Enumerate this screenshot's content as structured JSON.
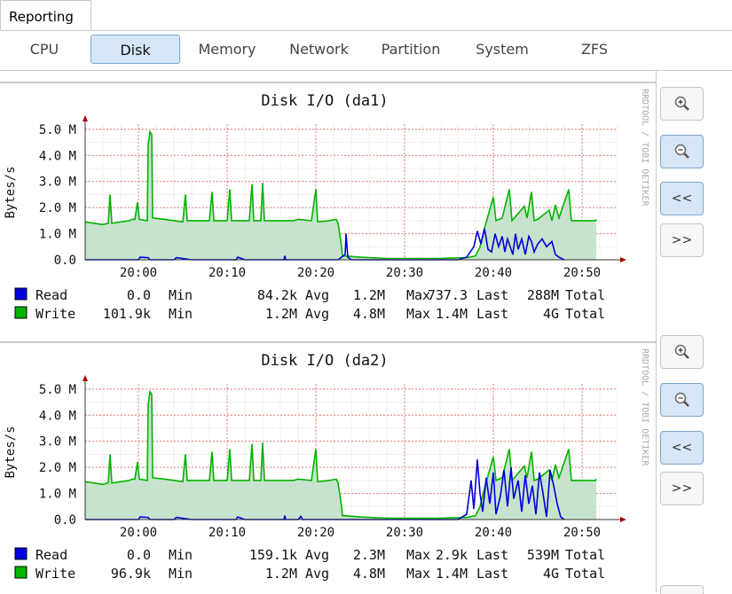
{
  "top_tab": {
    "label": "Reporting"
  },
  "tabs": [
    {
      "label": "CPU",
      "selected": false
    },
    {
      "label": "Disk",
      "selected": true
    },
    {
      "label": "Memory",
      "selected": false
    },
    {
      "label": "Network",
      "selected": false
    },
    {
      "label": "Partition",
      "selected": false
    },
    {
      "label": "System",
      "selected": false
    },
    {
      "label": "ZFS",
      "selected": false
    }
  ],
  "graph_buttons": {
    "zoom_in": "zoom-in-icon",
    "zoom_out": "zoom-out-icon",
    "back": "<<",
    "forward": ">>"
  },
  "chart_data": [
    {
      "type": "area",
      "title": "Disk I/O (da1)",
      "ylabel": "Bytes/s",
      "watermark": "RRDTOOL / TOBI OETIKER",
      "ylim": [
        0,
        5.2
      ],
      "yticks": [
        "0.0",
        "1.0 M",
        "2.0 M",
        "3.0 M",
        "4.0 M",
        "5.0 M"
      ],
      "xticks": [
        "20:00",
        "20:10",
        "20:20",
        "20:30",
        "20:40",
        "20:50"
      ],
      "colors": {
        "read": "#0000dd",
        "write": "#00b400",
        "write_fill": "#c8e3cd"
      },
      "legend": [
        {
          "name": "Read",
          "values": [
            "0.0",
            "Min",
            "84.2k",
            "Avg",
            "1.2M",
            "Max",
            "737.3",
            "Last",
            "288M",
            "Total"
          ]
        },
        {
          "name": "Write",
          "values": [
            "101.9k",
            "Min",
            "1.2M",
            "Avg",
            "4.8M",
            "Max",
            "1.4M",
            "Last",
            "4G",
            "Total"
          ]
        }
      ],
      "series_write": [
        [
          0,
          1.45
        ],
        [
          2,
          1.35
        ],
        [
          2.6,
          1.4
        ],
        [
          2.8,
          2.5
        ],
        [
          3.0,
          1.4
        ],
        [
          5,
          1.5
        ],
        [
          5.3,
          1.55
        ],
        [
          5.6,
          1.55
        ],
        [
          5.9,
          2.2
        ],
        [
          6.1,
          1.55
        ],
        [
          7,
          1.5
        ],
        [
          7.1,
          4.4
        ],
        [
          7.3,
          4.9
        ],
        [
          7.5,
          4.8
        ],
        [
          7.6,
          1.6
        ],
        [
          9,
          1.55
        ],
        [
          11,
          1.45
        ],
        [
          11.3,
          2.5
        ],
        [
          11.5,
          1.5
        ],
        [
          14,
          1.5
        ],
        [
          14.3,
          2.6
        ],
        [
          14.5,
          1.5
        ],
        [
          16,
          1.5
        ],
        [
          16.3,
          2.7
        ],
        [
          16.5,
          1.5
        ],
        [
          18.5,
          1.5
        ],
        [
          18.8,
          2.9
        ],
        [
          19.0,
          1.5
        ],
        [
          19.8,
          1.5
        ],
        [
          20.0,
          2.95
        ],
        [
          20.2,
          1.5
        ],
        [
          23.5,
          1.5
        ],
        [
          24,
          1.55
        ],
        [
          25.5,
          1.5
        ],
        [
          26.0,
          2.7
        ],
        [
          26.2,
          1.45
        ],
        [
          27.5,
          1.5
        ],
        [
          28.3,
          1.55
        ],
        [
          28.5,
          1.4
        ],
        [
          28.9,
          0.5
        ],
        [
          29.0,
          0.15
        ],
        [
          31,
          0.1
        ],
        [
          34,
          0.05
        ],
        [
          40,
          0.05
        ],
        [
          43,
          0.08
        ],
        [
          44,
          0.15
        ],
        [
          44.5,
          0.5
        ],
        [
          45,
          1.2
        ],
        [
          45.5,
          1.8
        ],
        [
          46,
          2.4
        ],
        [
          46.3,
          1.5
        ],
        [
          47,
          1.6
        ],
        [
          47.8,
          2.7
        ],
        [
          48.1,
          1.5
        ],
        [
          49.5,
          2.05
        ],
        [
          49.8,
          1.6
        ],
        [
          50.3,
          2.6
        ],
        [
          50.6,
          1.5
        ],
        [
          51,
          1.55
        ],
        [
          52.3,
          1.9
        ],
        [
          52.6,
          1.5
        ],
        [
          53,
          2.1
        ],
        [
          53.4,
          1.6
        ],
        [
          54.5,
          2.7
        ],
        [
          54.8,
          1.5
        ],
        [
          56,
          1.5
        ],
        [
          57.5,
          1.5
        ],
        [
          57.6,
          1.55
        ]
      ],
      "series_read": [
        [
          0,
          0
        ],
        [
          6,
          0
        ],
        [
          6.2,
          0.1
        ],
        [
          7.1,
          0.08
        ],
        [
          7.3,
          0
        ],
        [
          10,
          0
        ],
        [
          10.3,
          0.08
        ],
        [
          12,
          0
        ],
        [
          17,
          0
        ],
        [
          17.2,
          0.1
        ],
        [
          18,
          0
        ],
        [
          22.4,
          0
        ],
        [
          22.5,
          0.15
        ],
        [
          22.6,
          0
        ],
        [
          28.5,
          0
        ],
        [
          29.3,
          0.2
        ],
        [
          29.4,
          1.0
        ],
        [
          29.6,
          0.1
        ],
        [
          30,
          0
        ],
        [
          42,
          0
        ],
        [
          43,
          0.1
        ],
        [
          43.8,
          0.5
        ],
        [
          44.2,
          1.1
        ],
        [
          44.6,
          0.6
        ],
        [
          45,
          1.2
        ],
        [
          45.4,
          0.4
        ],
        [
          45.8,
          0.3
        ],
        [
          46.2,
          1.0
        ],
        [
          46.6,
          0.5
        ],
        [
          47,
          0.9
        ],
        [
          47.3,
          0.3
        ],
        [
          47.6,
          0.8
        ],
        [
          48.2,
          0.2
        ],
        [
          48.5,
          1.0
        ],
        [
          48.8,
          0.4
        ],
        [
          49.2,
          0.8
        ],
        [
          49.6,
          0.2
        ],
        [
          50.0,
          0.9
        ],
        [
          50.3,
          0.7
        ],
        [
          50.6,
          0.3
        ],
        [
          51,
          0.6
        ],
        [
          51.5,
          0.8
        ],
        [
          52.0,
          0.5
        ],
        [
          52.6,
          0.7
        ],
        [
          53.0,
          0.2
        ],
        [
          53.4,
          0.1
        ],
        [
          54,
          0
        ]
      ]
    },
    {
      "type": "area",
      "title": "Disk I/O (da2)",
      "ylabel": "Bytes/s",
      "watermark": "RRDTOOL / TOBI OETIKER",
      "ylim": [
        0,
        5.2
      ],
      "yticks": [
        "0.0",
        "1.0 M",
        "2.0 M",
        "3.0 M",
        "4.0 M",
        "5.0 M"
      ],
      "xticks": [
        "20:00",
        "20:10",
        "20:20",
        "20:30",
        "20:40",
        "20:50"
      ],
      "colors": {
        "read": "#0000dd",
        "write": "#00b400",
        "write_fill": "#c8e3cd"
      },
      "legend": [
        {
          "name": "Read",
          "values": [
            "0.0",
            "Min",
            "159.1k",
            "Avg",
            "2.3M",
            "Max",
            "2.9k",
            "Last",
            "539M",
            "Total"
          ]
        },
        {
          "name": "Write",
          "values": [
            "96.9k",
            "Min",
            "1.2M",
            "Avg",
            "4.8M",
            "Max",
            "1.4M",
            "Last",
            "4G",
            "Total"
          ]
        }
      ],
      "series_write": [
        [
          0,
          1.45
        ],
        [
          2,
          1.35
        ],
        [
          2.6,
          1.4
        ],
        [
          2.8,
          2.5
        ],
        [
          3.0,
          1.4
        ],
        [
          5,
          1.5
        ],
        [
          5.3,
          1.55
        ],
        [
          5.6,
          1.55
        ],
        [
          5.9,
          2.2
        ],
        [
          6.1,
          1.55
        ],
        [
          7,
          1.5
        ],
        [
          7.1,
          4.4
        ],
        [
          7.3,
          4.9
        ],
        [
          7.5,
          4.8
        ],
        [
          7.6,
          1.6
        ],
        [
          9,
          1.55
        ],
        [
          11,
          1.45
        ],
        [
          11.3,
          2.5
        ],
        [
          11.5,
          1.5
        ],
        [
          14,
          1.5
        ],
        [
          14.3,
          2.6
        ],
        [
          14.5,
          1.5
        ],
        [
          16,
          1.5
        ],
        [
          16.3,
          2.7
        ],
        [
          16.5,
          1.5
        ],
        [
          18.5,
          1.5
        ],
        [
          18.8,
          2.9
        ],
        [
          19.0,
          1.5
        ],
        [
          19.8,
          1.5
        ],
        [
          20.0,
          2.95
        ],
        [
          20.2,
          1.5
        ],
        [
          23.5,
          1.5
        ],
        [
          24,
          1.55
        ],
        [
          25.5,
          1.5
        ],
        [
          26.0,
          2.7
        ],
        [
          26.2,
          1.45
        ],
        [
          27.5,
          1.5
        ],
        [
          28.3,
          1.55
        ],
        [
          28.5,
          1.4
        ],
        [
          28.9,
          0.5
        ],
        [
          29.0,
          0.15
        ],
        [
          31,
          0.1
        ],
        [
          34,
          0.05
        ],
        [
          40,
          0.05
        ],
        [
          43,
          0.08
        ],
        [
          44,
          0.15
        ],
        [
          44.5,
          0.5
        ],
        [
          45,
          1.2
        ],
        [
          45.5,
          1.8
        ],
        [
          46,
          2.4
        ],
        [
          46.3,
          1.5
        ],
        [
          47,
          1.6
        ],
        [
          47.8,
          2.7
        ],
        [
          48.1,
          1.5
        ],
        [
          49.5,
          2.05
        ],
        [
          49.8,
          1.6
        ],
        [
          50.3,
          2.6
        ],
        [
          50.6,
          1.5
        ],
        [
          51,
          1.55
        ],
        [
          52.3,
          1.9
        ],
        [
          52.6,
          1.5
        ],
        [
          53,
          2.1
        ],
        [
          53.4,
          1.6
        ],
        [
          54.5,
          2.7
        ],
        [
          54.8,
          1.5
        ],
        [
          56,
          1.5
        ],
        [
          57.5,
          1.5
        ],
        [
          57.6,
          1.55
        ]
      ],
      "series_read": [
        [
          0,
          0
        ],
        [
          6,
          0
        ],
        [
          6.2,
          0.1
        ],
        [
          7.1,
          0.08
        ],
        [
          7.3,
          0
        ],
        [
          10,
          0
        ],
        [
          10.3,
          0.08
        ],
        [
          12,
          0
        ],
        [
          17,
          0
        ],
        [
          17.2,
          0.1
        ],
        [
          18,
          0
        ],
        [
          22.4,
          0
        ],
        [
          22.5,
          0.15
        ],
        [
          22.6,
          0
        ],
        [
          24,
          0
        ],
        [
          24.3,
          0.12
        ],
        [
          24.5,
          0
        ],
        [
          28,
          0
        ],
        [
          42,
          0
        ],
        [
          43,
          0.2
        ],
        [
          43.5,
          1.5
        ],
        [
          43.8,
          0.4
        ],
        [
          44.2,
          2.3
        ],
        [
          44.5,
          1.0
        ],
        [
          44.8,
          0.3
        ],
        [
          45.2,
          1.6
        ],
        [
          45.6,
          0.6
        ],
        [
          46,
          1.8
        ],
        [
          46.3,
          0.2
        ],
        [
          46.8,
          0.9
        ],
        [
          47.2,
          1.9
        ],
        [
          47.6,
          0.5
        ],
        [
          48,
          2.0
        ],
        [
          48.3,
          0.8
        ],
        [
          48.8,
          1.5
        ],
        [
          49.2,
          0.3
        ],
        [
          49.6,
          1.7
        ],
        [
          50.0,
          0.6
        ],
        [
          50.4,
          1.3
        ],
        [
          50.8,
          0.2
        ],
        [
          51.2,
          1.8
        ],
        [
          51.6,
          1.0
        ],
        [
          52.0,
          0.1
        ],
        [
          52.4,
          1.9
        ],
        [
          52.8,
          1.3
        ],
        [
          53.2,
          0.6
        ],
        [
          53.6,
          0.1
        ],
        [
          54,
          0
        ]
      ]
    }
  ]
}
